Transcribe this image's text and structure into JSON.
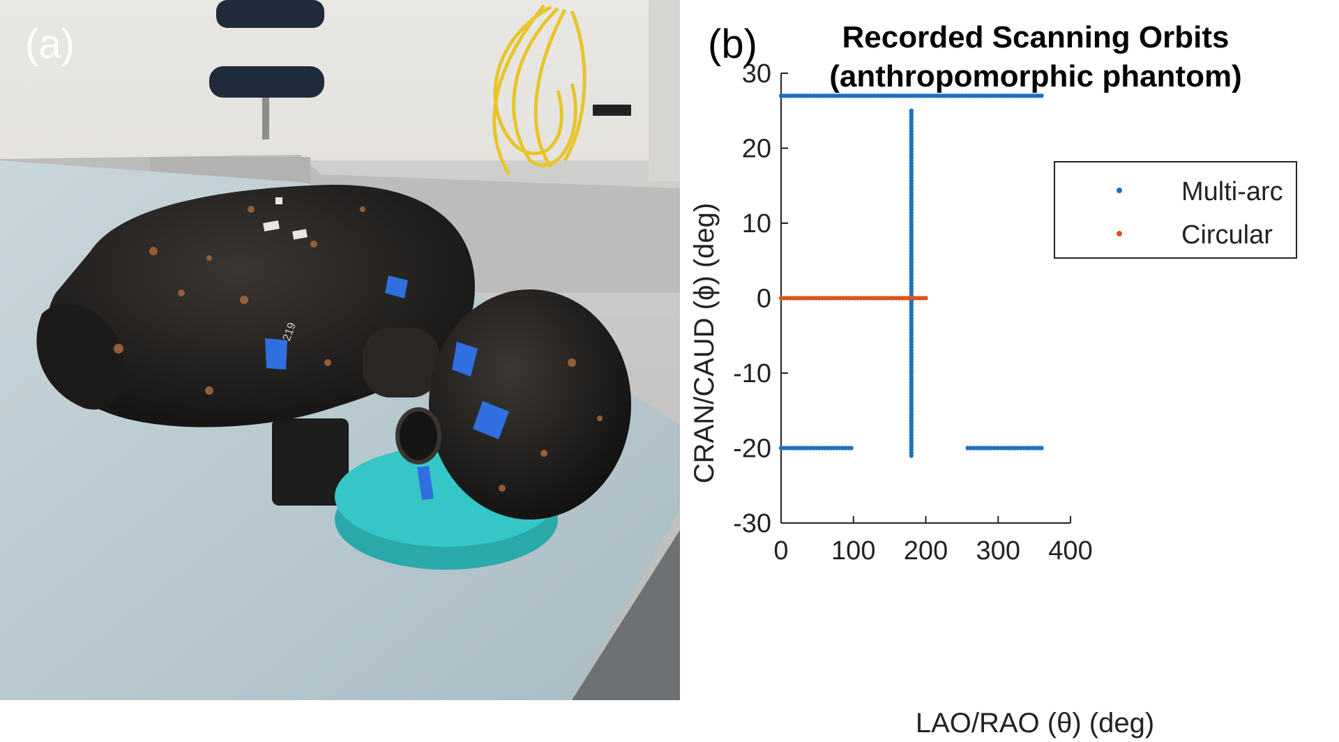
{
  "panel_a": {
    "label": "(a)",
    "photo_label": "219"
  },
  "panel_b": {
    "label": "(b)"
  },
  "colors": {
    "multi_arc": "#1f6fc5",
    "circular": "#d9541a",
    "tape": "#2f6fe0",
    "cushion": "#33c6c6",
    "phantom": "#1a1a1a"
  },
  "chart_data": {
    "type": "scatter",
    "title_lines": [
      "Recorded Scanning Orbits",
      "(anthropomorphic phantom)"
    ],
    "xlabel": "LAO/RAO (θ) (deg)",
    "ylabel": "CRAN/CAUD (ϕ) (deg)",
    "xlim": [
      0,
      400
    ],
    "ylim": [
      -30,
      30
    ],
    "xticks": [
      0,
      100,
      200,
      300,
      400
    ],
    "yticks": [
      30,
      20,
      10,
      0,
      -10,
      -20,
      -30
    ],
    "grid": false,
    "legend_position": "top-right",
    "series": [
      {
        "name": "Multi-arc",
        "color": "#1f6fc5",
        "segments": [
          {
            "x": [
              0,
              360
            ],
            "y": [
              27,
              27
            ]
          },
          {
            "x": [
              180,
              180
            ],
            "y": [
              -21,
              25
            ]
          },
          {
            "x": [
              0,
              97
            ],
            "y": [
              -20,
              -20
            ]
          },
          {
            "x": [
              258,
              360
            ],
            "y": [
              -20,
              -20
            ]
          }
        ]
      },
      {
        "name": "Circular",
        "color": "#d9541a",
        "segments": [
          {
            "x": [
              0,
              200
            ],
            "y": [
              0,
              0
            ]
          }
        ]
      }
    ]
  }
}
